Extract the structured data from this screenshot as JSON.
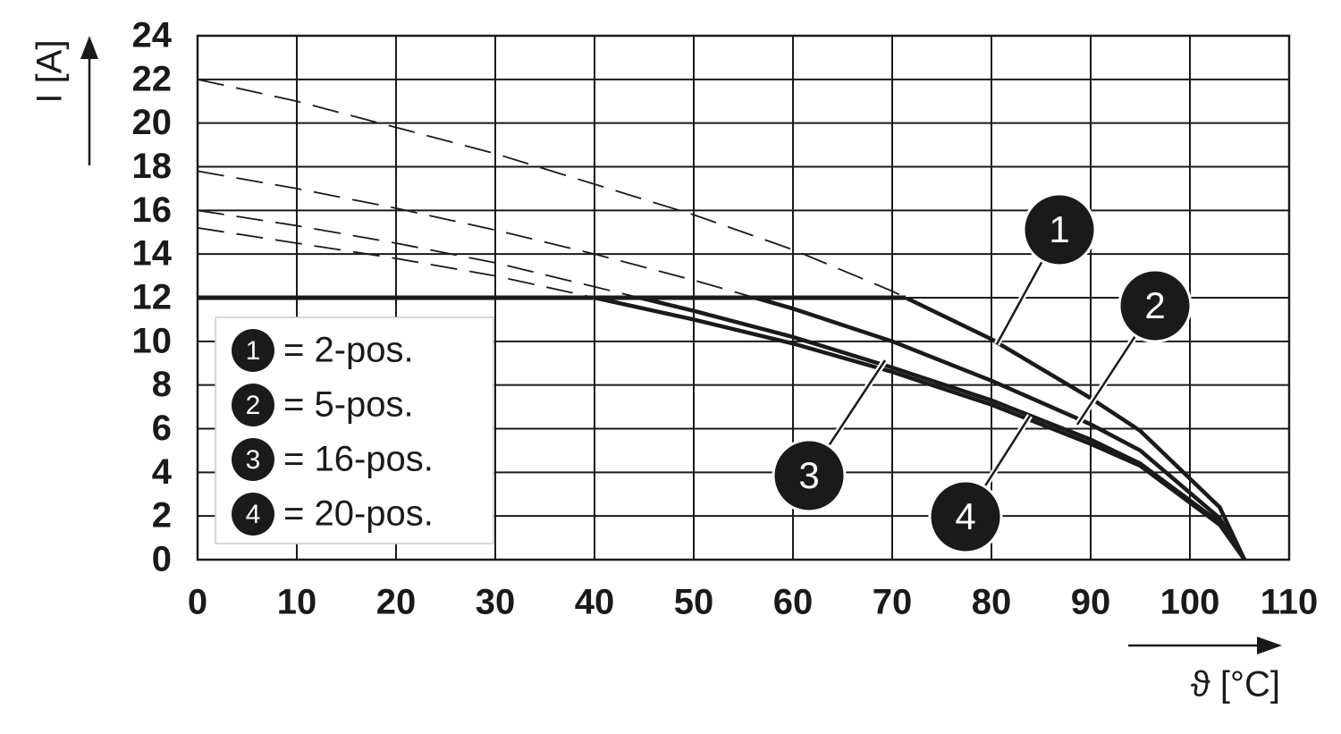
{
  "chart_data": {
    "type": "line",
    "xlabel": "ϑ [°C]",
    "ylabel": "I [A]",
    "xlim": [
      0,
      110
    ],
    "xticks": [
      0,
      10,
      20,
      30,
      40,
      50,
      60,
      70,
      80,
      90,
      100,
      110
    ],
    "ylim": [
      0,
      24
    ],
    "yticks": [
      0,
      2,
      4,
      6,
      8,
      10,
      12,
      14,
      16,
      18,
      20,
      22,
      24
    ],
    "grid": true,
    "limit": 12,
    "color": "#1a1a1a",
    "x": [
      0,
      10,
      20,
      30,
      40,
      50,
      60,
      70,
      80,
      90,
      95,
      103,
      105.5
    ],
    "series": [
      {
        "id": "1",
        "name": "= 2-pos.",
        "values": [
          22,
          21,
          19.8,
          18.6,
          17.2,
          15.8,
          14.2,
          12.3,
          10.1,
          7.4,
          5.9,
          2.4,
          0
        ]
      },
      {
        "id": "2",
        "name": "= 5-pos.",
        "values": [
          17.8,
          17,
          16.1,
          15.1,
          14,
          12.8,
          11.5,
          10,
          8.2,
          6.2,
          5,
          1.9,
          0
        ]
      },
      {
        "id": "3",
        "name": "= 16-pos.",
        "values": [
          16,
          15.3,
          14.5,
          13.6,
          12.5,
          11.4,
          10.2,
          8.8,
          7.3,
          5.5,
          4.4,
          1.7,
          0
        ]
      },
      {
        "id": "4",
        "name": "= 20-pos.",
        "values": [
          15.2,
          14.5,
          13.8,
          13,
          12,
          11,
          9.9,
          8.6,
          7.1,
          5.3,
          4.3,
          1.6,
          0
        ]
      }
    ]
  }
}
